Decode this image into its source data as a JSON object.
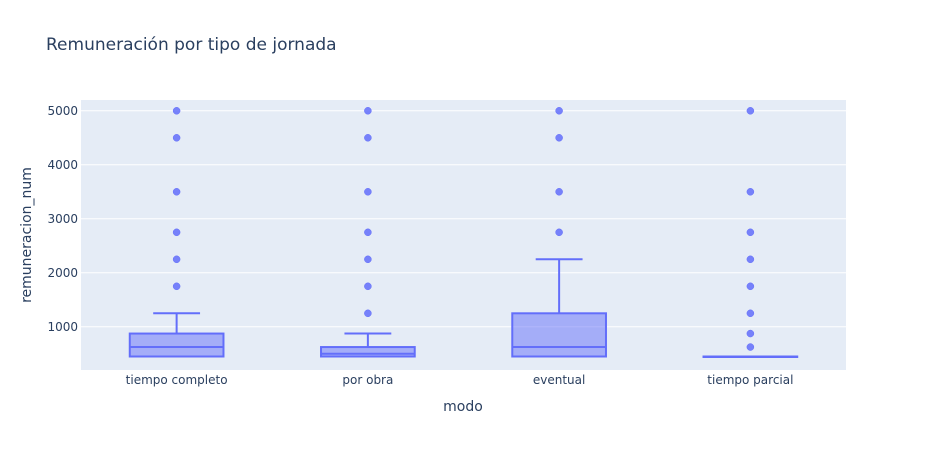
{
  "chart_data": {
    "type": "box",
    "title": "Remuneración por tipo de jornada",
    "xlabel": "modo",
    "ylabel": "remuneracion_num",
    "ylim": [
      200,
      5200
    ],
    "yticks": [
      1000,
      2000,
      3000,
      4000,
      5000
    ],
    "grid": true,
    "colors": {
      "plot_bg": "#e5ecf6",
      "grid": "#ffffff",
      "box_fill": "rgba(99,110,250,0.5)",
      "box_line": "#636efa",
      "text": "#2a3f5f",
      "tick_text": "#2a3f5f"
    },
    "categories": [
      "tiempo completo",
      "por obra",
      "eventual",
      "tiempo parcial"
    ],
    "boxes": [
      {
        "category": "tiempo completo",
        "lowerfence": 450,
        "q1": 450,
        "median": 625,
        "q3": 875,
        "upperfence": 1250,
        "outliers": [
          1750,
          2250,
          2750,
          3500,
          4500,
          5000
        ]
      },
      {
        "category": "por obra",
        "lowerfence": 450,
        "q1": 450,
        "median": 500,
        "q3": 625,
        "upperfence": 875,
        "outliers": [
          1250,
          1750,
          2250,
          2750,
          3500,
          4500,
          5000
        ]
      },
      {
        "category": "eventual",
        "lowerfence": 450,
        "q1": 450,
        "median": 625,
        "q3": 1250,
        "upperfence": 2250,
        "outliers": [
          2750,
          3500,
          4500,
          5000
        ]
      },
      {
        "category": "tiempo parcial",
        "lowerfence": 450,
        "q1": 450,
        "median": 450,
        "q3": 450,
        "upperfence": 450,
        "outliers": [
          625,
          875,
          1250,
          1750,
          2250,
          2750,
          3500,
          5000
        ]
      }
    ]
  }
}
